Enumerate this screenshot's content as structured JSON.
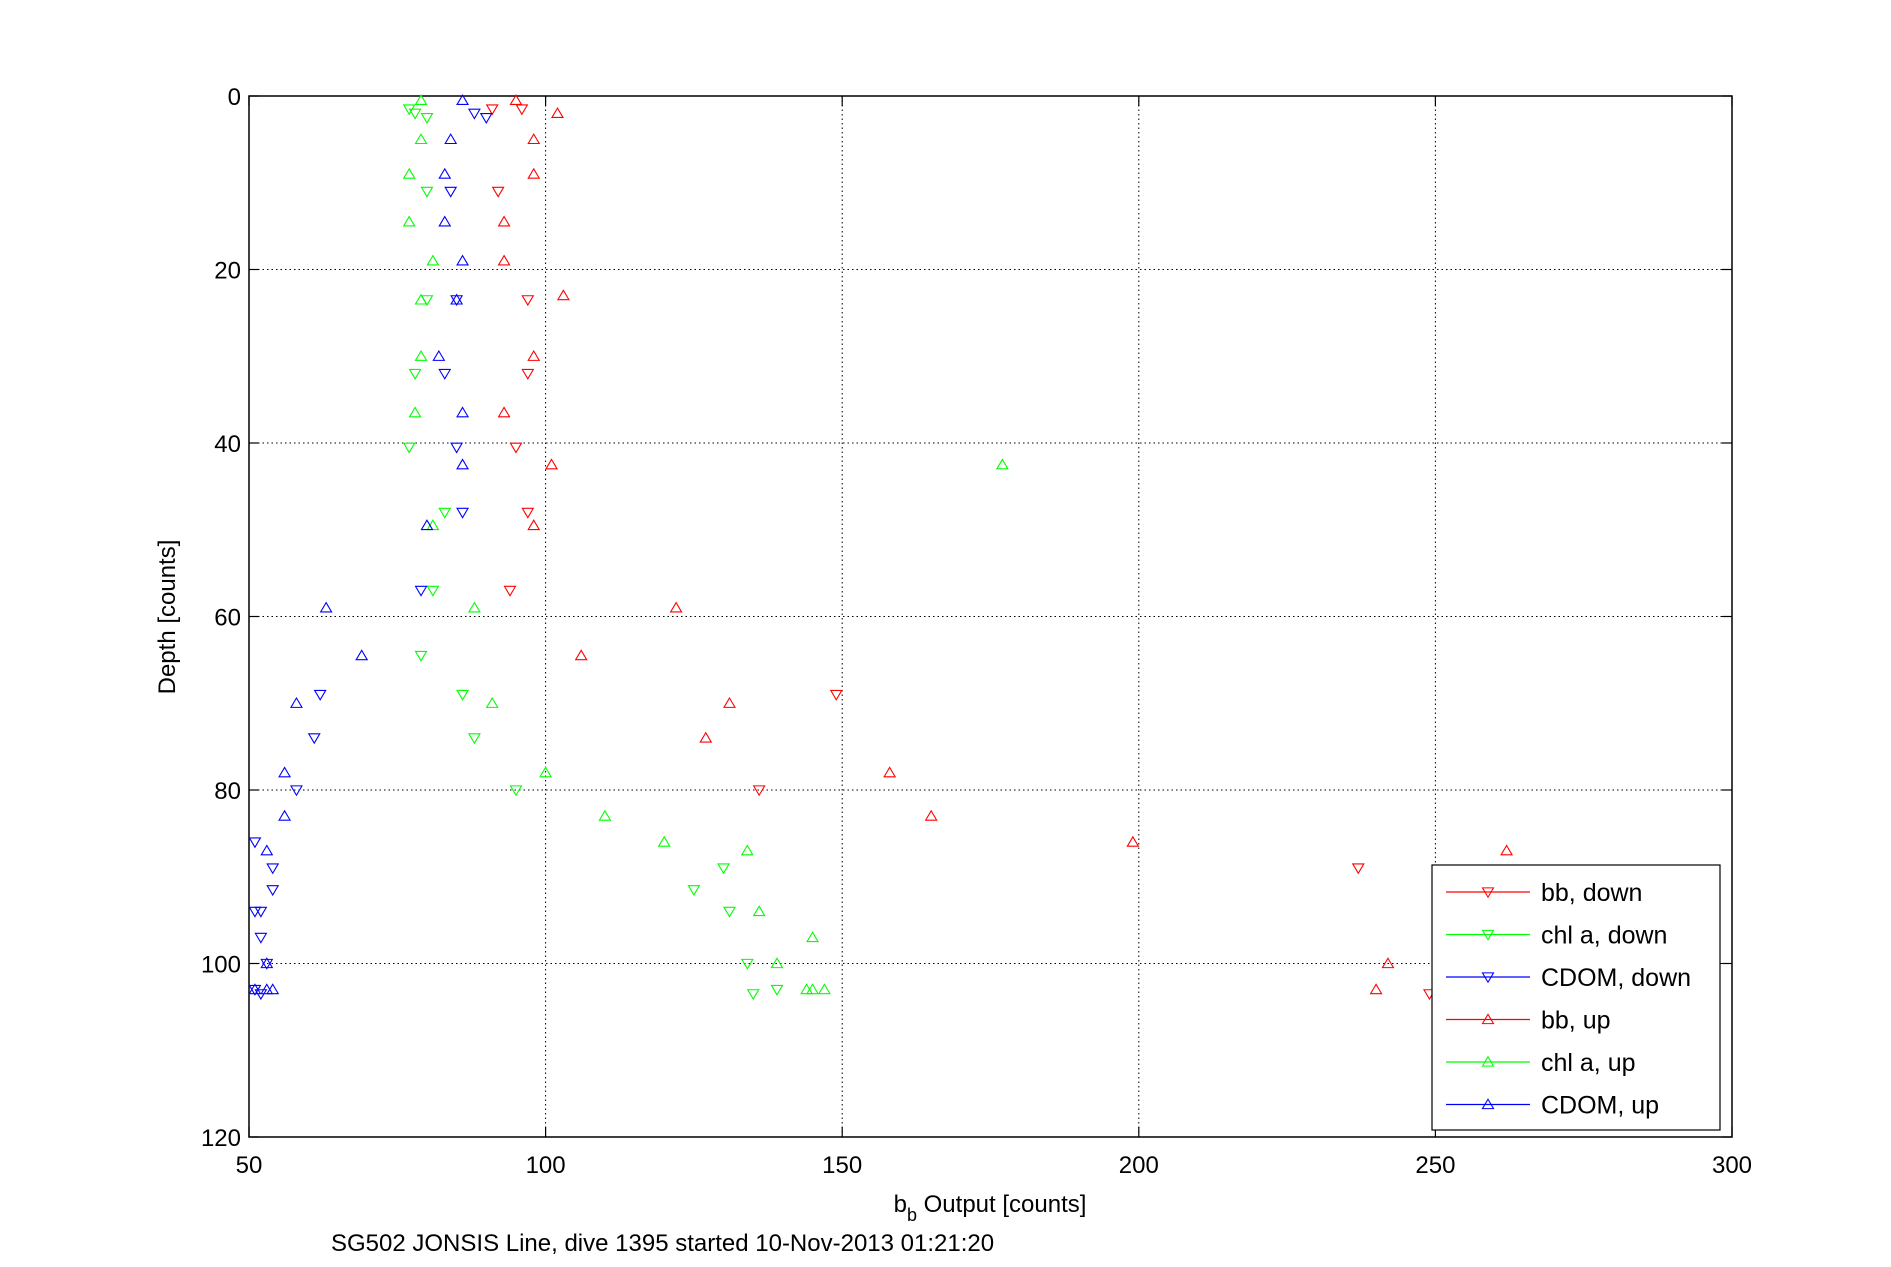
{
  "chart_data": {
    "type": "scatter",
    "xlabel_main": "b",
    "xlabel_sub": "b",
    "xlabel_rest": " Output [counts]",
    "ylabel": "Depth [counts]",
    "caption": "SG502 JONSIS Line, dive 1395 started 10-Nov-2013 01:21:20",
    "xlim": [
      50,
      300
    ],
    "ylim": [
      0,
      120
    ],
    "y_reversed": true,
    "grid": true,
    "legend_position": "bottom-right",
    "xticks": [
      "50",
      "100",
      "150",
      "200",
      "250",
      "300"
    ],
    "yticks": [
      "0",
      "20",
      "40",
      "60",
      "80",
      "100",
      "120"
    ],
    "series": [
      {
        "name": "bb, down",
        "color": "#ff0000",
        "marker": "triangle-down",
        "points": [
          [
            91,
            1.5
          ],
          [
            96,
            1.5
          ],
          [
            92,
            11
          ],
          [
            97,
            23.5
          ],
          [
            97,
            32
          ],
          [
            95,
            40.5
          ],
          [
            97,
            48
          ],
          [
            94,
            57
          ],
          [
            149,
            69
          ],
          [
            136,
            80
          ],
          [
            237,
            89
          ],
          [
            249,
            103.5
          ]
        ]
      },
      {
        "name": "chl a, down",
        "color": "#00ff00",
        "marker": "triangle-down",
        "points": [
          [
            77,
            1.5
          ],
          [
            78,
            2
          ],
          [
            80,
            2.5
          ],
          [
            80,
            11
          ],
          [
            80,
            23.5
          ],
          [
            78,
            32
          ],
          [
            77,
            40.5
          ],
          [
            83,
            48
          ],
          [
            81,
            57
          ],
          [
            79,
            64.5
          ],
          [
            86,
            69
          ],
          [
            88,
            74
          ],
          [
            95,
            80
          ],
          [
            125,
            91.5
          ],
          [
            130,
            89
          ],
          [
            131,
            94
          ],
          [
            134,
            100
          ],
          [
            135,
            103.5
          ],
          [
            139,
            103
          ]
        ]
      },
      {
        "name": "CDOM, down",
        "color": "#0000ff",
        "marker": "triangle-down",
        "points": [
          [
            88,
            2
          ],
          [
            90,
            2.5
          ],
          [
            84,
            11
          ],
          [
            85,
            23.5
          ],
          [
            83,
            32
          ],
          [
            85,
            40.5
          ],
          [
            86,
            48
          ],
          [
            79,
            57
          ],
          [
            62,
            69
          ],
          [
            61,
            74
          ],
          [
            58,
            80
          ],
          [
            51,
            86
          ],
          [
            54,
            89
          ],
          [
            54,
            91.5
          ],
          [
            52,
            94
          ],
          [
            51,
            94
          ],
          [
            52,
            97
          ],
          [
            53,
            100
          ],
          [
            51,
            103
          ],
          [
            52,
            103.5
          ]
        ]
      },
      {
        "name": "bb, up",
        "color": "#ff0000",
        "marker": "triangle-up",
        "points": [
          [
            95,
            0.5
          ],
          [
            102,
            2
          ],
          [
            98,
            5
          ],
          [
            98,
            9
          ],
          [
            93,
            14.5
          ],
          [
            93,
            19
          ],
          [
            103,
            23
          ],
          [
            98,
            30
          ],
          [
            93,
            36.5
          ],
          [
            101,
            42.5
          ],
          [
            98,
            49.5
          ],
          [
            122,
            59
          ],
          [
            106,
            64.5
          ],
          [
            131,
            70
          ],
          [
            127,
            74
          ],
          [
            158,
            78
          ],
          [
            165,
            83
          ],
          [
            199,
            86
          ],
          [
            262,
            87
          ],
          [
            242,
            100
          ],
          [
            240,
            103
          ]
        ]
      },
      {
        "name": "chl a, up",
        "color": "#00ff00",
        "marker": "triangle-up",
        "points": [
          [
            79,
            0.5
          ],
          [
            79,
            5
          ],
          [
            77,
            9
          ],
          [
            77,
            14.5
          ],
          [
            81,
            19
          ],
          [
            79,
            23.5
          ],
          [
            79,
            30
          ],
          [
            78,
            36.5
          ],
          [
            177,
            42.5
          ],
          [
            81,
            49.5
          ],
          [
            88,
            59
          ],
          [
            91,
            70
          ],
          [
            100,
            78
          ],
          [
            110,
            83
          ],
          [
            120,
            86
          ],
          [
            134,
            87
          ],
          [
            136,
            94
          ],
          [
            145,
            97
          ],
          [
            139,
            100
          ],
          [
            144,
            103
          ],
          [
            145,
            103
          ],
          [
            147,
            103
          ]
        ]
      },
      {
        "name": "CDOM, up",
        "color": "#0000ff",
        "marker": "triangle-up",
        "points": [
          [
            86,
            0.5
          ],
          [
            84,
            5
          ],
          [
            83,
            9
          ],
          [
            83,
            14.5
          ],
          [
            86,
            19
          ],
          [
            85,
            23.5
          ],
          [
            82,
            30
          ],
          [
            86,
            36.5
          ],
          [
            86,
            42.5
          ],
          [
            80,
            49.5
          ],
          [
            63,
            59
          ],
          [
            69,
            64.5
          ],
          [
            58,
            70
          ],
          [
            56,
            78
          ],
          [
            56,
            83
          ],
          [
            53,
            87
          ],
          [
            53,
            100
          ],
          [
            51,
            103
          ],
          [
            53,
            103
          ],
          [
            54,
            103
          ]
        ]
      }
    ]
  }
}
